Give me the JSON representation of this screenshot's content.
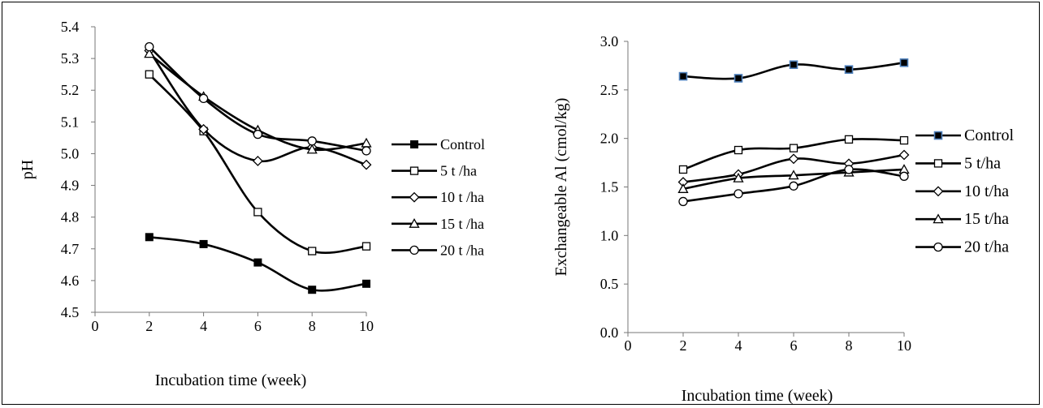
{
  "chart_data": [
    {
      "type": "line",
      "ylabel": "pH",
      "xlabel": "Incubation time (week)",
      "x_ticks": [
        "0",
        "2",
        "4",
        "6",
        "8",
        "10"
      ],
      "y_ticks": [
        "4.5",
        "4.6",
        "4.7",
        "4.8",
        "4.9",
        "5.0",
        "5.1",
        "5.2",
        "5.3",
        "5.4"
      ],
      "xlim": [
        0,
        10
      ],
      "ylim": [
        4.5,
        5.4
      ],
      "grid": false,
      "legend_position": "right",
      "x": [
        2,
        4,
        6,
        8,
        10
      ],
      "series": [
        {
          "name": "Control",
          "marker": "filled-square",
          "values": [
            4.737,
            4.715,
            4.657,
            4.571,
            4.59
          ]
        },
        {
          "name": "5 t /ha",
          "marker": "open-square",
          "values": [
            5.25,
            5.071,
            4.816,
            4.693,
            4.708
          ]
        },
        {
          "name": "10 t /ha",
          "marker": "open-diamond",
          "values": [
            5.325,
            5.077,
            4.977,
            5.02,
            4.965
          ]
        },
        {
          "name": "15 t /ha",
          "marker": "open-triangle",
          "values": [
            5.315,
            5.18,
            5.074,
            5.013,
            5.033
          ]
        },
        {
          "name": "20 t /ha",
          "marker": "open-circle",
          "values": [
            5.337,
            5.174,
            5.061,
            5.04,
            5.009
          ]
        }
      ]
    },
    {
      "type": "line",
      "ylabel": "Exchangeable Al  (cmol/kg)",
      "xlabel": "Incubation time (week)",
      "x_ticks": [
        "0",
        "2",
        "4",
        "6",
        "8",
        "10"
      ],
      "y_ticks": [
        "0.0",
        "0.5",
        "1.0",
        "1.5",
        "2.0",
        "2.5",
        "3.0"
      ],
      "xlim": [
        0,
        10
      ],
      "ylim": [
        0,
        3
      ],
      "grid": false,
      "legend_position": "right",
      "x": [
        2,
        4,
        6,
        8,
        10
      ],
      "series": [
        {
          "name": "Control",
          "marker": "filled-square-blue-edge",
          "values": [
            2.64,
            2.62,
            2.76,
            2.71,
            2.78
          ]
        },
        {
          "name": "5 t/ha",
          "marker": "open-square",
          "values": [
            1.68,
            1.88,
            1.9,
            1.99,
            1.98
          ]
        },
        {
          "name": "10 t/ha",
          "marker": "open-diamond",
          "values": [
            1.55,
            1.63,
            1.79,
            1.74,
            1.83
          ]
        },
        {
          "name": "15 t/ha",
          "marker": "open-triangle",
          "values": [
            1.48,
            1.59,
            1.62,
            1.65,
            1.68
          ]
        },
        {
          "name": "20 t/ha",
          "marker": "open-circle",
          "values": [
            1.35,
            1.43,
            1.51,
            1.68,
            1.61
          ]
        }
      ]
    }
  ],
  "colors": {
    "line": "#000000",
    "control_marker_edge_right": "#4f81bd"
  }
}
